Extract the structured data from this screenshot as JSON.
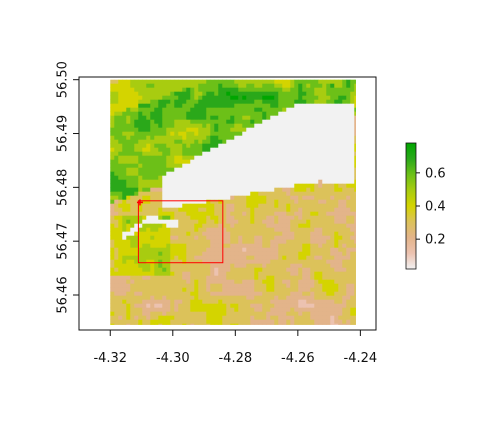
{
  "chart_data": {
    "type": "heatmap",
    "title": "",
    "xlabel": "",
    "ylabel": "",
    "xlim": [
      -4.33,
      -4.235
    ],
    "ylim": [
      56.4535,
      56.5005
    ],
    "x_ticks": [
      -4.32,
      -4.3,
      -4.28,
      -4.26,
      -4.24
    ],
    "x_tick_labels": [
      "-4.32",
      "-4.30",
      "-4.28",
      "-4.26",
      "-4.24"
    ],
    "y_ticks": [
      56.46,
      56.47,
      56.48,
      56.49,
      56.5
    ],
    "y_tick_labels": [
      "56.46",
      "56.47",
      "56.48",
      "56.49",
      "56.50"
    ],
    "raster_extent": {
      "xmin": -4.32,
      "xmax": -4.2415,
      "ymin": 56.4545,
      "ymax": 56.5
    },
    "highlight_box": {
      "xmin": -4.311,
      "xmax": -4.284,
      "ymin": 56.466,
      "ymax": 56.4775,
      "color": "#ff0000"
    },
    "point_marker": {
      "x": -4.3105,
      "y": 56.4772,
      "color": "#ff0000"
    },
    "water_color": "#f2f2f2",
    "legend": {
      "position": "right",
      "min": 0.02,
      "max": 0.78,
      "ticks": [
        0.2,
        0.4,
        0.6
      ],
      "tick_labels": [
        "0.2",
        "0.4",
        "0.6"
      ],
      "colors": [
        "#f2f2f2",
        "#ecc2b0",
        "#e3b48a",
        "#dcc25a",
        "#d4d400",
        "#a8cc10",
        "#6cc018",
        "#2aa81a",
        "#00a600"
      ]
    }
  }
}
